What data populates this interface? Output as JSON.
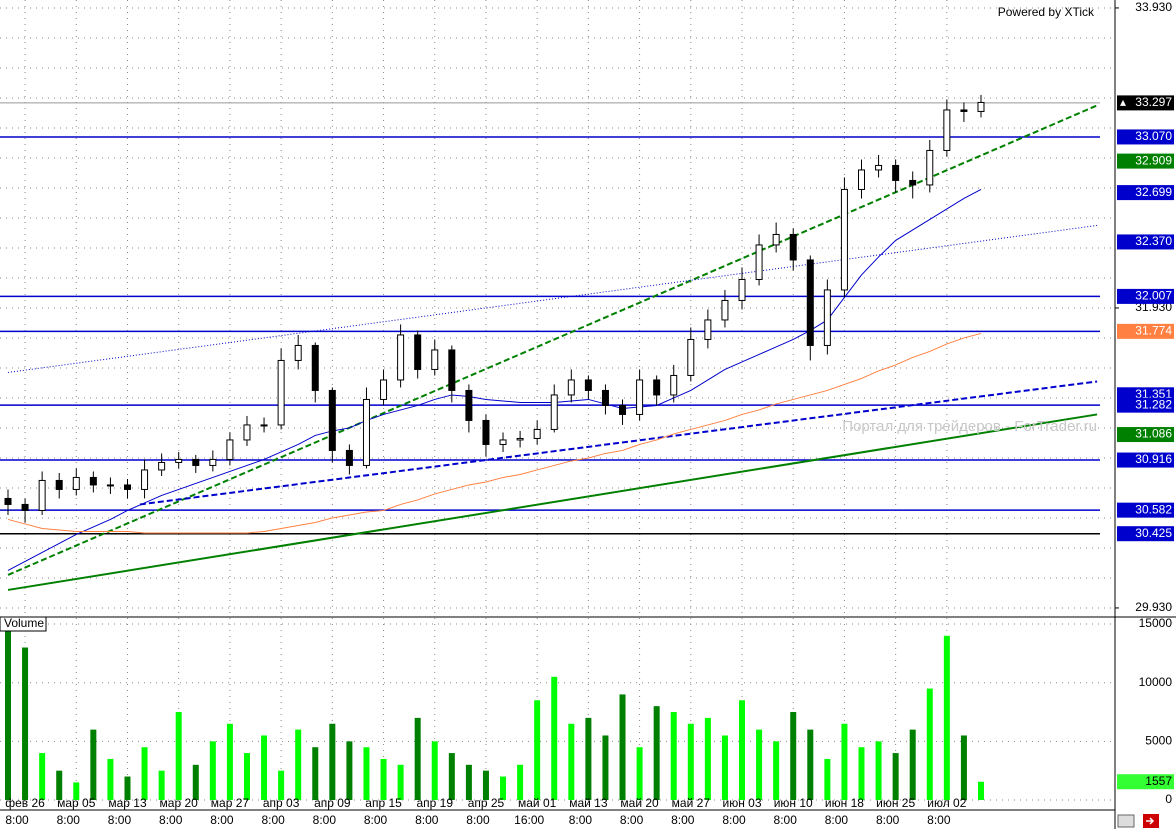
{
  "chart_data": {
    "type": "candlestick",
    "title": "Powered by XTick",
    "watermark": "Портал для трейдеров - ForTrader.ru",
    "categories": [
      null,
      "фев 26",
      null,
      null,
      "мар 05",
      null,
      null,
      "мар 13",
      null,
      null,
      "мар 20",
      null,
      null,
      "мар 27",
      null,
      null,
      "апр 03",
      null,
      null,
      "апр 09",
      null,
      null,
      "апр 15",
      null,
      null,
      "апр 19",
      null,
      null,
      "апр 25",
      null,
      null,
      "май 01",
      null,
      null,
      "май 13",
      null,
      null,
      "май 20",
      null,
      null,
      "май 27",
      null,
      null,
      "июн 03",
      null,
      null,
      "июн 10",
      null,
      null,
      "июн 18",
      null,
      null,
      "июн 25",
      null,
      null,
      "июл 02",
      null,
      null
    ],
    "time_labels": [
      null,
      "8:00",
      null,
      null,
      "8:00",
      null,
      null,
      "8:00",
      null,
      null,
      "8:00",
      null,
      null,
      "8:00",
      null,
      null,
      "8:00",
      null,
      null,
      "8:00",
      null,
      null,
      "8:00",
      null,
      null,
      "8:00",
      null,
      null,
      "8:00",
      null,
      null,
      "16:00",
      null,
      null,
      "8:00",
      null,
      null,
      "8:00",
      null,
      null,
      "8:00",
      null,
      null,
      "8:00",
      null,
      null,
      "8:00",
      null,
      null,
      "8:00",
      null,
      null,
      "8:00",
      null,
      null,
      "8:00",
      null,
      null
    ],
    "open": [
      30.66,
      30.62,
      30.58,
      30.78,
      30.72,
      30.8,
      30.75,
      30.75,
      30.72,
      30.85,
      30.9,
      30.92,
      30.88,
      30.92,
      31.05,
      31.15,
      31.15,
      31.58,
      31.68,
      31.38,
      30.98,
      30.88,
      31.32,
      31.45,
      31.75,
      31.52,
      31.65,
      31.38,
      31.18,
      31.02,
      31.05,
      31.06,
      31.12,
      31.35,
      31.45,
      31.38,
      31.28,
      31.22,
      31.45,
      31.35,
      31.48,
      31.72,
      31.85,
      31.98,
      32.12,
      32.35,
      32.42,
      32.25,
      31.68,
      32.05,
      32.72,
      32.85,
      32.88,
      32.78,
      32.75,
      32.98,
      33.25,
      33.24
    ],
    "high": [
      30.72,
      30.66,
      30.84,
      30.83,
      30.86,
      30.84,
      30.8,
      30.79,
      30.92,
      30.96,
      30.97,
      30.95,
      30.98,
      31.1,
      31.21,
      31.2,
      31.66,
      31.75,
      31.7,
      31.4,
      31.02,
      31.4,
      31.52,
      31.82,
      31.78,
      31.72,
      31.68,
      31.42,
      31.22,
      31.1,
      31.11,
      31.18,
      31.42,
      31.52,
      31.48,
      31.42,
      31.32,
      31.52,
      31.48,
      31.55,
      31.8,
      31.92,
      32.05,
      32.2,
      32.42,
      32.5,
      32.46,
      32.28,
      32.12,
      32.8,
      32.92,
      32.95,
      32.92,
      32.84,
      33.05,
      33.32,
      33.3,
      33.35
    ],
    "low": [
      30.55,
      30.5,
      30.55,
      30.66,
      30.68,
      30.7,
      30.69,
      30.66,
      30.66,
      30.81,
      30.86,
      30.83,
      30.84,
      30.88,
      31.01,
      31.1,
      31.12,
      31.52,
      31.3,
      30.9,
      30.82,
      30.86,
      31.28,
      31.4,
      31.46,
      31.48,
      31.3,
      31.1,
      30.94,
      30.97,
      31.0,
      31.02,
      31.1,
      31.3,
      31.32,
      31.22,
      31.15,
      31.18,
      31.28,
      31.3,
      31.44,
      31.66,
      31.8,
      31.92,
      32.08,
      32.3,
      32.18,
      31.58,
      31.62,
      32.0,
      32.66,
      32.8,
      32.7,
      32.66,
      32.7,
      32.94,
      33.17,
      33.2
    ],
    "close": [
      30.62,
      30.58,
      30.78,
      30.72,
      30.8,
      30.75,
      30.75,
      30.72,
      30.85,
      30.9,
      30.92,
      30.88,
      30.92,
      31.05,
      31.15,
      31.15,
      31.58,
      31.68,
      31.38,
      30.98,
      30.88,
      31.32,
      31.45,
      31.75,
      31.52,
      31.65,
      31.38,
      31.18,
      31.02,
      31.05,
      31.06,
      31.12,
      31.35,
      31.45,
      31.38,
      31.28,
      31.22,
      31.45,
      31.35,
      31.48,
      31.72,
      31.85,
      31.98,
      32.12,
      32.35,
      32.42,
      32.25,
      31.68,
      32.05,
      32.72,
      32.85,
      32.88,
      32.78,
      32.75,
      32.98,
      33.25,
      33.24,
      33.3
    ],
    "up_color": "#ffffff",
    "down_color": "#000000",
    "overlays": [
      {
        "color": "#0000cc",
        "values": [
          30.18,
          30.24,
          30.3,
          30.36,
          30.42,
          30.47,
          30.52,
          30.58,
          30.63,
          30.68,
          30.72,
          30.76,
          30.8,
          30.84,
          30.88,
          30.92,
          30.97,
          31.02,
          31.08,
          31.11,
          31.13,
          31.18,
          31.22,
          31.25,
          31.28,
          31.32,
          31.35,
          31.34,
          31.32,
          31.31,
          31.3,
          31.3,
          31.3,
          31.31,
          31.32,
          31.29,
          31.26,
          31.27,
          31.28,
          31.33,
          31.38,
          31.45,
          31.52,
          31.57,
          31.62,
          31.67,
          31.72,
          31.78,
          31.85,
          32.0,
          32.15,
          32.27,
          32.38,
          32.45,
          32.52,
          32.59,
          32.66,
          32.72
        ]
      },
      {
        "color": "#ff8040",
        "values": [
          30.52,
          30.49,
          30.46,
          30.45,
          30.44,
          30.44,
          30.44,
          30.44,
          30.43,
          30.43,
          30.43,
          30.43,
          30.43,
          30.43,
          30.43,
          30.44,
          30.46,
          30.48,
          30.5,
          30.53,
          30.55,
          30.57,
          30.58,
          30.62,
          30.65,
          30.69,
          30.72,
          30.75,
          30.77,
          30.8,
          30.82,
          30.85,
          30.88,
          30.91,
          30.93,
          30.96,
          30.98,
          31.02,
          31.05,
          31.09,
          31.12,
          31.15,
          31.18,
          31.22,
          31.25,
          31.29,
          31.32,
          31.35,
          31.38,
          31.42,
          31.46,
          31.51,
          31.55,
          31.6,
          31.64,
          31.69,
          31.73,
          31.76
        ]
      }
    ],
    "trendlines": [
      {
        "x": [
          0,
          63.8
        ],
        "y": [
          30.15,
          33.28
        ],
        "color": "#008000",
        "style": "dashed"
      },
      {
        "x": [
          7.73,
          63.8
        ],
        "y": [
          30.62,
          31.44
        ],
        "color": "#0000cc",
        "style": "dashed"
      },
      {
        "x": [
          0,
          63.8
        ],
        "y": [
          30.05,
          31.22
        ],
        "color": "#008000",
        "style": "solid"
      },
      {
        "x": [
          0,
          63.8
        ],
        "y": [
          31.5,
          32.48
        ],
        "color": "#0000cc",
        "style": "dotted"
      }
    ],
    "levels": [
      {
        "value": 33.297,
        "label": "33.297",
        "color": "#000000",
        "line_color": "#999999",
        "current": true
      },
      {
        "value": 33.07,
        "label": "33.070",
        "color": "#0000cc",
        "line_color": "#0000cc"
      },
      {
        "value": 32.909,
        "label": "32.909",
        "color": "#008000"
      },
      {
        "value": 32.699,
        "label": "32.699",
        "color": "#0000cc"
      },
      {
        "value": 32.37,
        "label": "32.370",
        "color": "#0000cc"
      },
      {
        "value": 32.007,
        "label": "32.007",
        "color": "#0000cc",
        "line_color": "#0000cc"
      },
      {
        "value": 31.774,
        "label": "31.774",
        "color": "#ff8040",
        "line_color": "#0000cc"
      },
      {
        "value": 31.351,
        "label": "31.351",
        "color": "#0000cc"
      },
      {
        "value": 31.282,
        "label": "31.282",
        "color": "#0000cc",
        "line_color": "#0000cc"
      },
      {
        "value": 31.086,
        "label": "31.086",
        "color": "#008000"
      },
      {
        "value": 30.916,
        "label": "30.916",
        "color": "#0000cc",
        "line_color": "#0000cc"
      },
      {
        "value": 30.582,
        "label": "30.582",
        "color": "#0000cc",
        "line_color": "#0000cc"
      },
      {
        "value": 30.425,
        "label": "30.425",
        "color": "#0000cc",
        "line_color": "#000000"
      }
    ],
    "ylim": [
      29.883,
      33.983
    ],
    "yticks": [
      {
        "value": 29.93,
        "label": "29.930"
      },
      {
        "value": 31.93,
        "label": "31.930"
      },
      {
        "value": 33.93,
        "label": "33.930"
      }
    ],
    "y_gridlines": [
      29.93,
      30.13,
      30.33,
      30.53,
      30.73,
      30.93,
      31.13,
      31.33,
      31.53,
      31.73,
      31.93,
      32.13,
      32.33,
      32.53,
      32.73,
      32.93,
      33.13,
      33.33,
      33.53,
      33.73,
      33.93
    ],
    "volume": {
      "title": "Volume",
      "values": [
        14500,
        13000,
        4000,
        2500,
        1500,
        6000,
        3500,
        2000,
        4500,
        2500,
        7500,
        3000,
        5000,
        6500,
        4000,
        5500,
        2500,
        6000,
        4500,
        6500,
        5000,
        4500,
        3500,
        3000,
        7000,
        5000,
        4000,
        3000,
        2500,
        2000,
        3000,
        8500,
        10500,
        6500,
        7000,
        5500,
        9000,
        4500,
        8000,
        7500,
        6500,
        7000,
        5500,
        8500,
        6000,
        5000,
        7500,
        6000,
        3500,
        6500,
        4500,
        5000,
        4000,
        6000,
        9500,
        14000,
        5500,
        1557
      ],
      "up_color": "#00ff00",
      "down_color": "#008000",
      "last_color": "#33ff33",
      "ylim": [
        0,
        15600
      ],
      "yticks": [
        0,
        5000,
        10000,
        15000
      ]
    }
  }
}
